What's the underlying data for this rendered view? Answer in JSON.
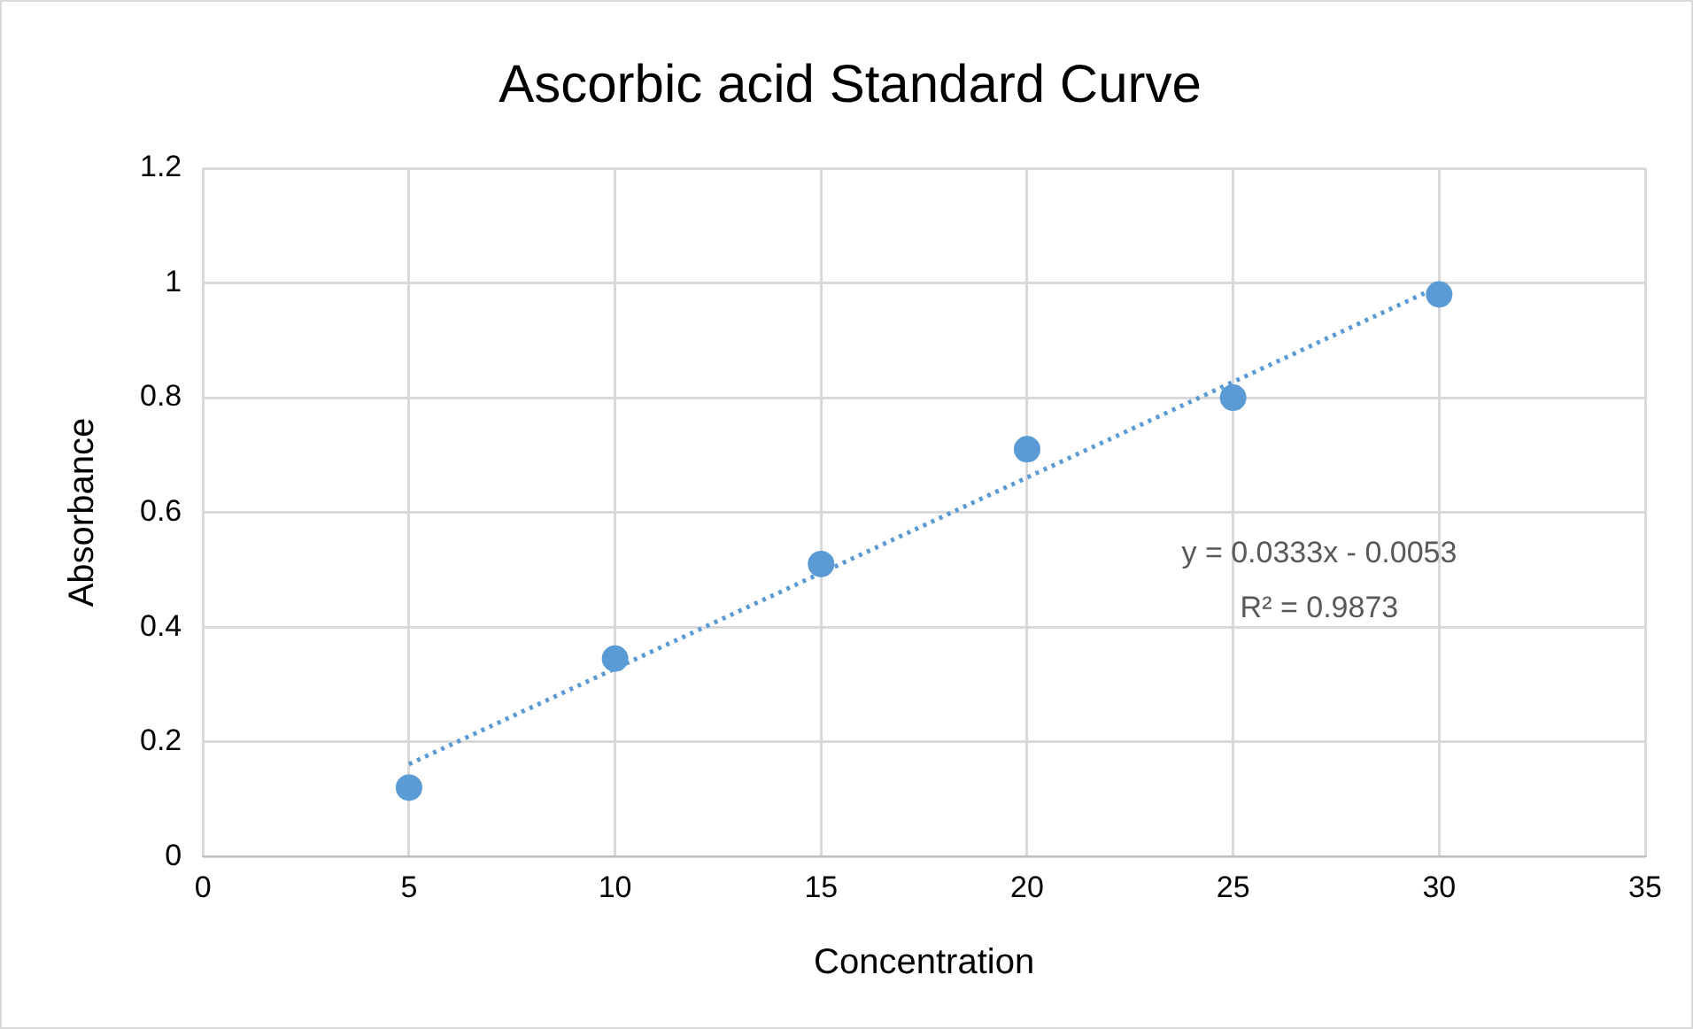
{
  "chart_data": {
    "type": "scatter",
    "title": "Ascorbic acid Standard Curve",
    "xlabel": "Concentration",
    "ylabel": "Absorbance",
    "xlim": [
      0,
      35
    ],
    "xticks": [
      0,
      5,
      10,
      15,
      20,
      25,
      30,
      35
    ],
    "ylim": [
      0,
      1.2
    ],
    "yticks": [
      0,
      0.2,
      0.4,
      0.6,
      0.8,
      1,
      1.2
    ],
    "grid": true,
    "legend": false,
    "series": [
      {
        "color": "#5b9bd5",
        "marker": "circle",
        "x": [
          5,
          10,
          15,
          20,
          25,
          30
        ],
        "values": [
          0.12,
          0.345,
          0.51,
          0.71,
          0.8,
          0.98
        ]
      },
      {
        "type": "line",
        "color": "#5b9bd5",
        "marker": "none",
        "line_style": "dotted",
        "x": [
          5,
          30
        ],
        "values": [
          0.161,
          0.994
        ]
      }
    ],
    "annotations": [
      "y = 0.0333x - 0.0053",
      "R² = 0.9873"
    ]
  }
}
